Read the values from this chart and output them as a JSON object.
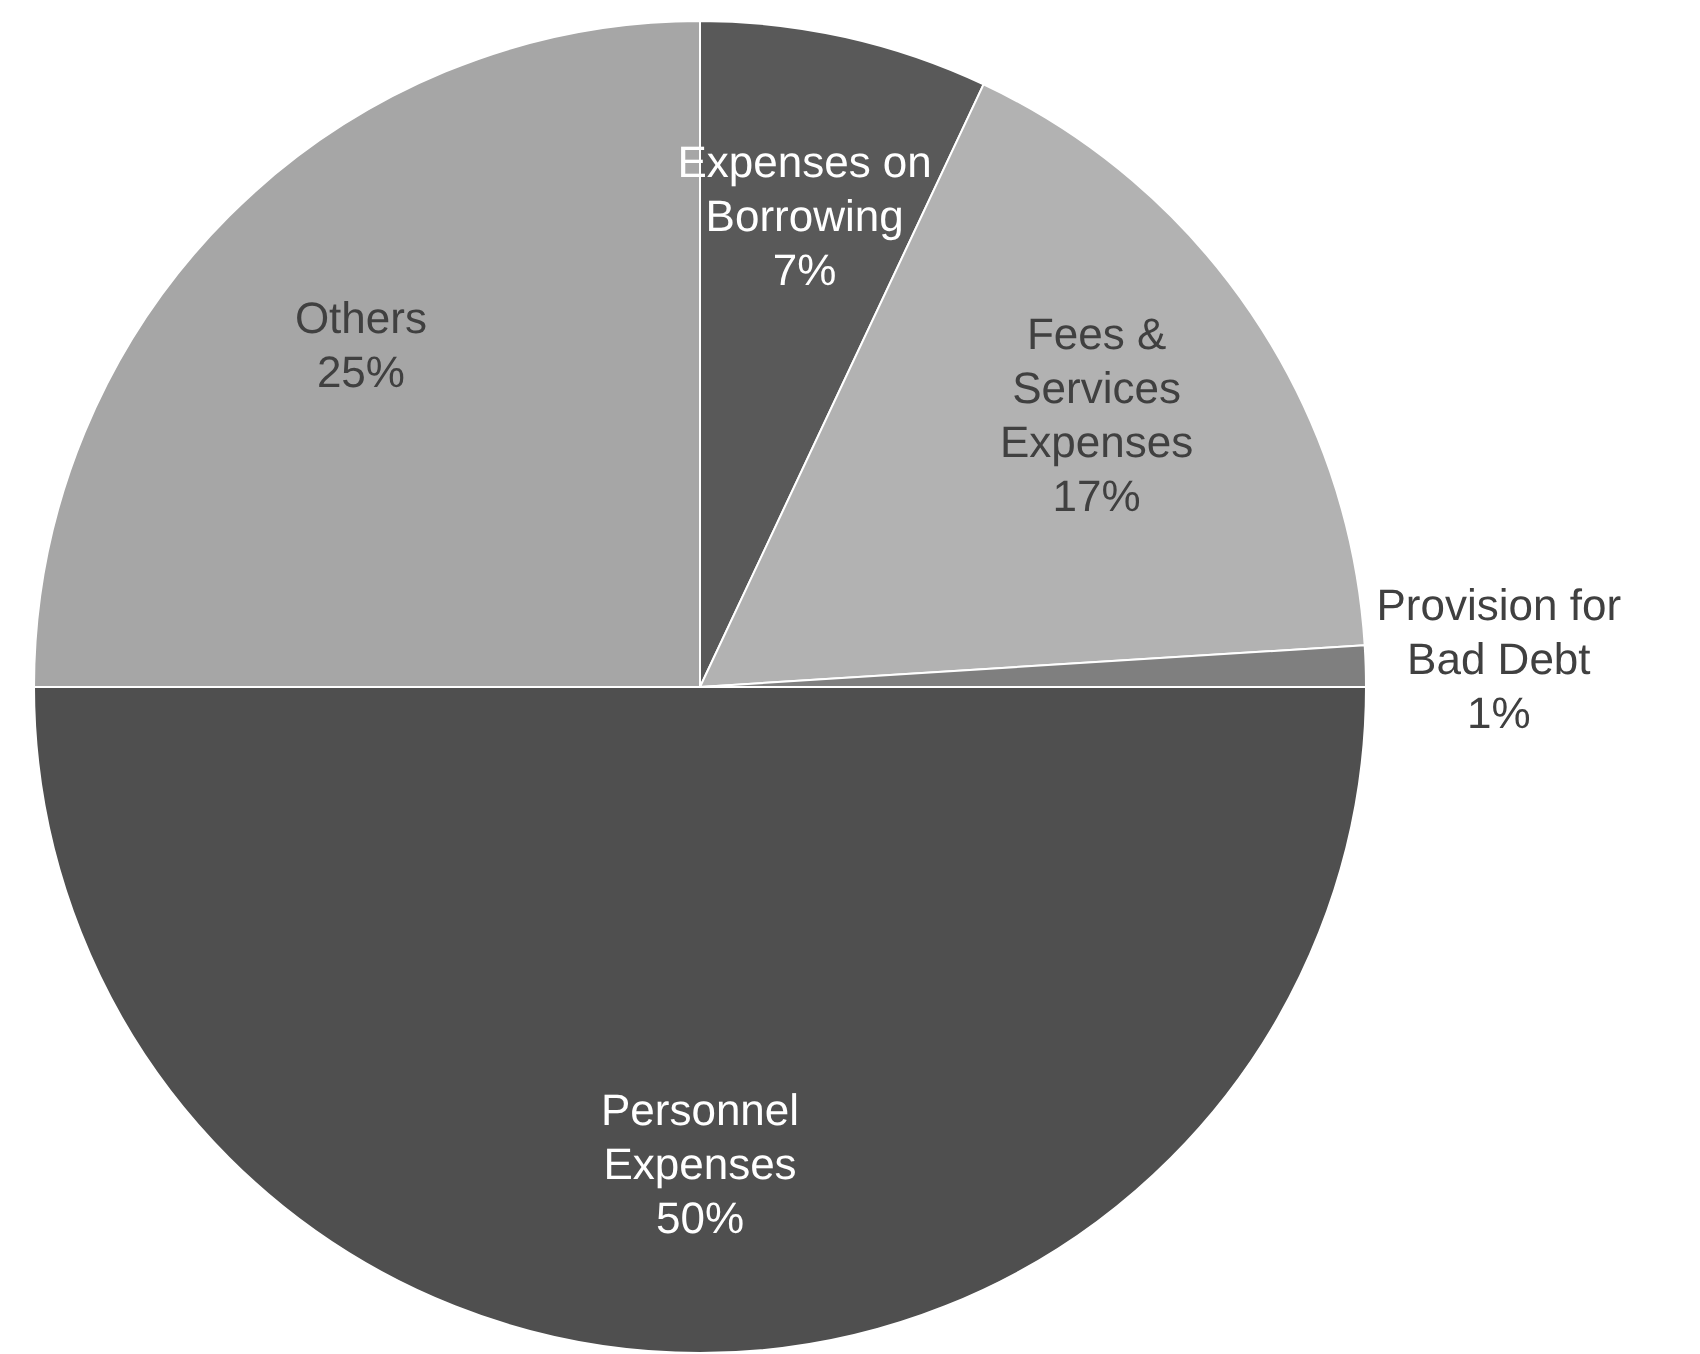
{
  "chart_data": {
    "type": "pie",
    "categories": [
      "Expenses on Borrowing",
      "Fees & Services Expenses",
      "Provision for Bad Debt",
      "Personnel Expenses",
      "Others"
    ],
    "values": [
      7,
      17,
      1,
      50,
      25
    ],
    "value_labels": [
      "7%",
      "17%",
      "1%",
      "50%",
      "25%"
    ],
    "colors": [
      "#595959",
      "#b2b2b2",
      "#7f7f7f",
      "#4f4f4f",
      "#a6a6a6"
    ],
    "legend": false
  }
}
